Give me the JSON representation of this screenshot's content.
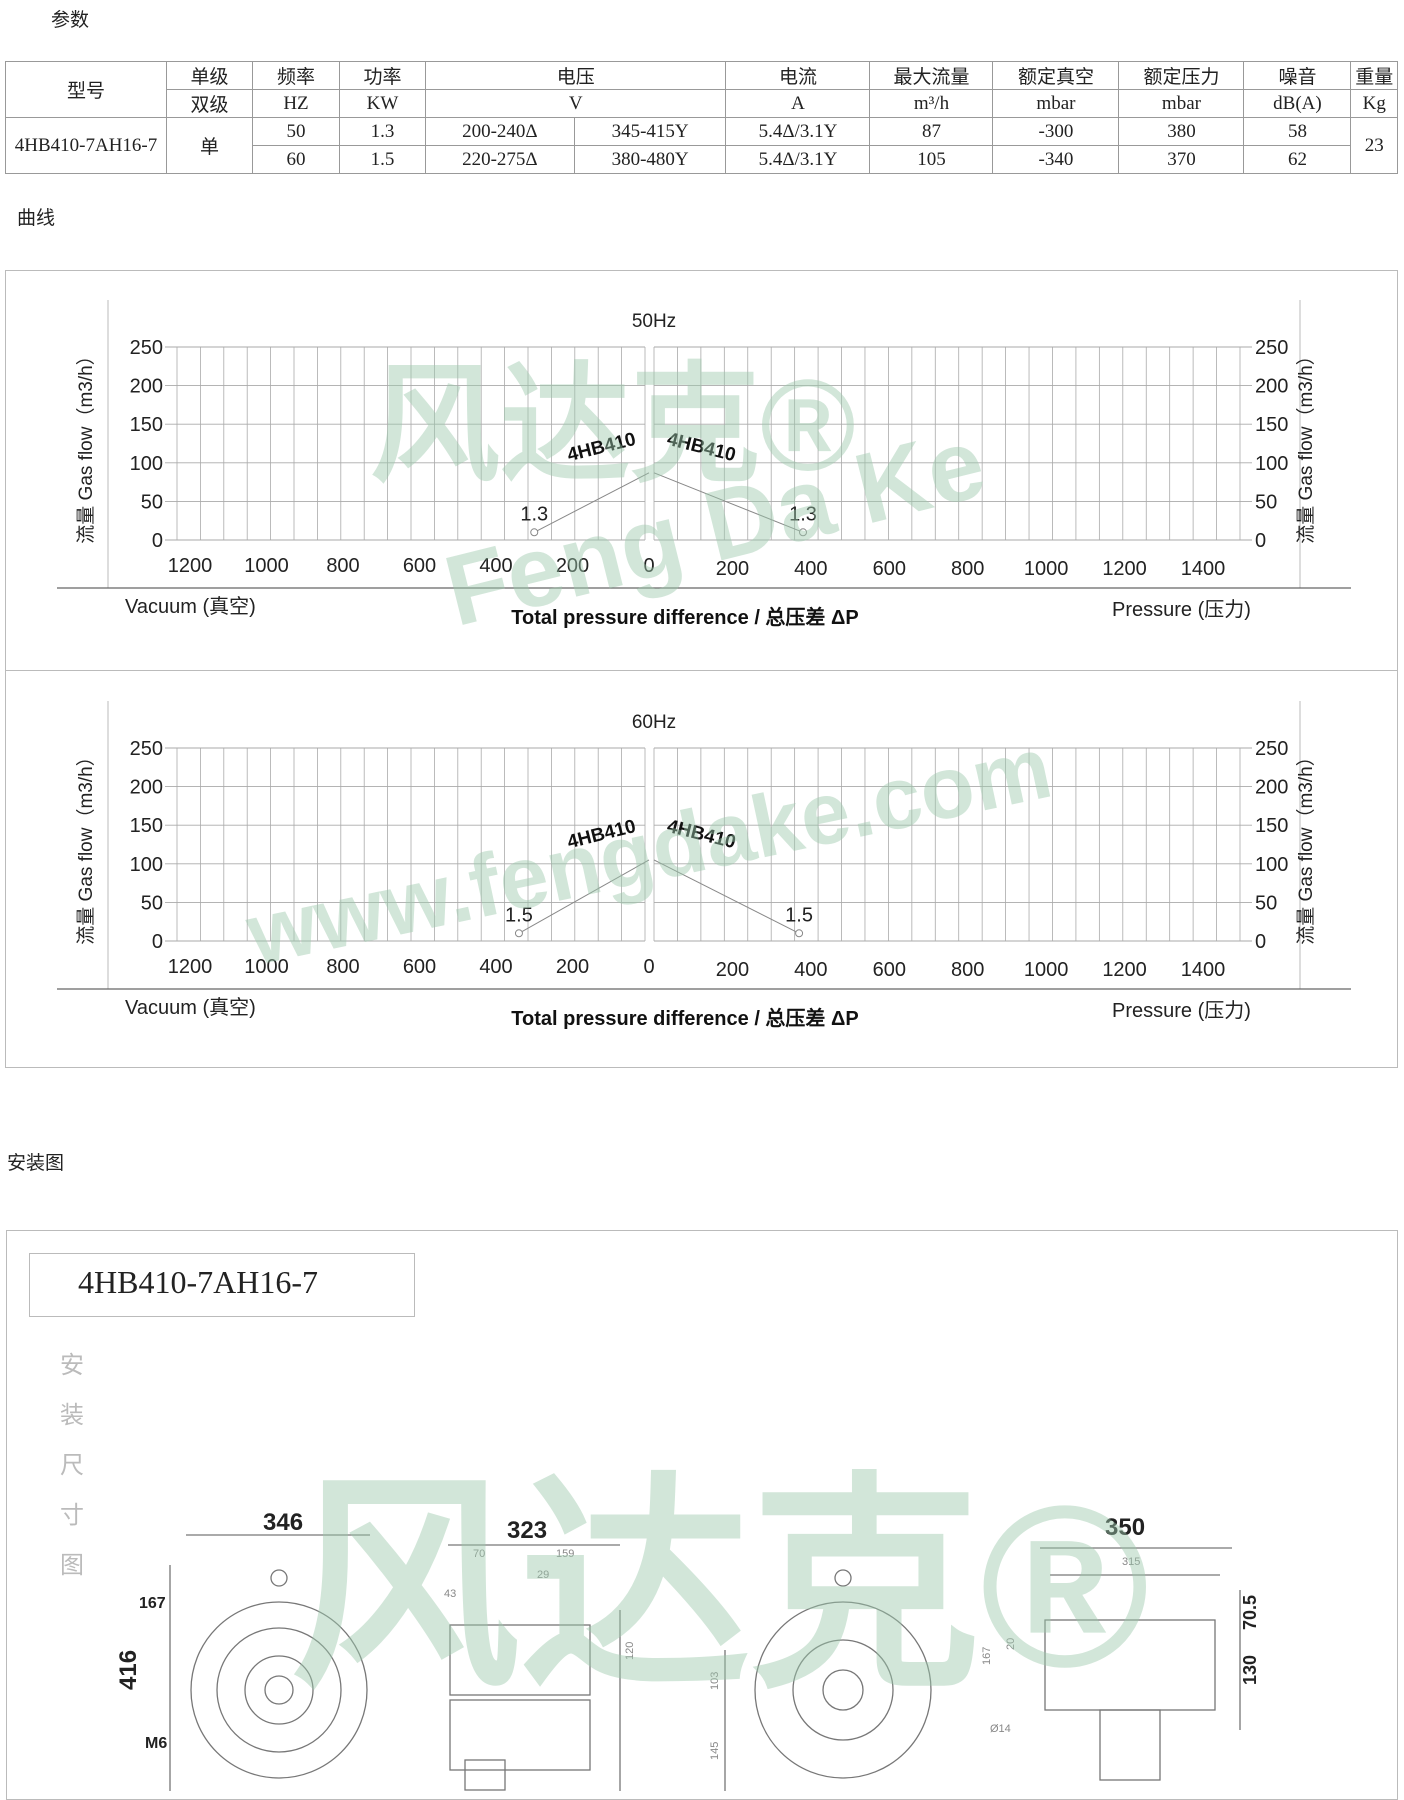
{
  "sections": {
    "params": "参数",
    "curves": "曲线",
    "install": "安装图"
  },
  "table": {
    "header1": [
      "型号",
      "单级",
      "频率",
      "功率",
      "电压",
      "电流",
      "最大流量",
      "额定真空",
      "额定压力",
      "噪音",
      "重量"
    ],
    "header2": [
      "双级",
      "HZ",
      "KW",
      "V",
      "A",
      "m³/h",
      "mbar",
      "mbar",
      "dB(A)",
      "Kg"
    ],
    "model": "4HB410-7AH16-7",
    "stage": "单",
    "weight": "23",
    "rows": [
      {
        "hz": "50",
        "kw": "1.3",
        "v_delta": "200-240Δ",
        "v_y": "345-415Y",
        "a": "5.4Δ/3.1Y",
        "flow": "87",
        "vacuum": "-300",
        "pressure": "380",
        "noise": "58"
      },
      {
        "hz": "60",
        "kw": "1.5",
        "v_delta": "220-275Δ",
        "v_y": "380-480Y",
        "a": "5.4Δ/3.1Y",
        "flow": "105",
        "vacuum": "-340",
        "pressure": "370",
        "noise": "62"
      }
    ]
  },
  "chart_data": [
    {
      "type": "line",
      "title": "50Hz",
      "ylabel": "流量 Gas flow（m3/h）",
      "xlabel": "Total pressure difference / 总压差  ΔP",
      "xlabel_left": "Vacuum (真空)",
      "xlabel_right": "Pressure (压力)",
      "yticks": [
        "0",
        "50",
        "100",
        "150",
        "200",
        "250"
      ],
      "xticks_left": [
        "1200",
        "1000",
        "800",
        "600",
        "400",
        "200",
        "0"
      ],
      "xticks_right": [
        "200",
        "400",
        "600",
        "800",
        "1000",
        "1200",
        "1400"
      ],
      "ylim": [
        0,
        250
      ],
      "xlim_vacuum": [
        0,
        1200
      ],
      "xlim_pressure": [
        0,
        1400
      ],
      "grid": true,
      "series": [
        {
          "name": "4HB410",
          "side": "vacuum",
          "point_label": "1.3",
          "x": [
            0,
            300
          ],
          "y": [
            87,
            10
          ]
        },
        {
          "name": "4HB410",
          "side": "pressure",
          "point_label": "1.3",
          "x": [
            0,
            380
          ],
          "y": [
            87,
            10
          ]
        }
      ]
    },
    {
      "type": "line",
      "title": "60Hz",
      "ylabel": "流量 Gas flow（m3/h）",
      "xlabel": "Total pressure difference / 总压差  ΔP",
      "xlabel_left": "Vacuum (真空)",
      "xlabel_right": "Pressure (压力)",
      "yticks": [
        "0",
        "50",
        "100",
        "150",
        "200",
        "250"
      ],
      "xticks_left": [
        "1200",
        "1000",
        "800",
        "600",
        "400",
        "200",
        "0"
      ],
      "xticks_right": [
        "200",
        "400",
        "600",
        "800",
        "1000",
        "1200",
        "1400"
      ],
      "ylim": [
        0,
        250
      ],
      "xlim_vacuum": [
        0,
        1200
      ],
      "xlim_pressure": [
        0,
        1400
      ],
      "grid": true,
      "series": [
        {
          "name": "4HB410",
          "side": "vacuum",
          "point_label": "1.5",
          "x": [
            0,
            340
          ],
          "y": [
            105,
            10
          ]
        },
        {
          "name": "4HB410",
          "side": "pressure",
          "point_label": "1.5",
          "x": [
            0,
            370
          ],
          "y": [
            105,
            10
          ]
        }
      ]
    }
  ],
  "drawing": {
    "title": "4HB410-7AH16-7",
    "side_caption": "安装尺寸图",
    "dims": {
      "width_front": "346",
      "height": "416",
      "d167": "167",
      "thread": "M6",
      "depth_side": "323",
      "d70": "70",
      "d159": "159",
      "d29": "29",
      "d43": "43",
      "d120": "120",
      "d103": "103",
      "d145": "145",
      "d167b": "167",
      "d20": "20",
      "width_right": "350",
      "d315": "315",
      "d70_5": "70.5",
      "d130": "130",
      "hole": "Ø14"
    }
  },
  "watermarks": {
    "brand_cn": "风达克®",
    "brand_pinyin": "Feng Da Ke",
    "url": "www.fengdake.com"
  },
  "colors": {
    "watermark": "#9cc9ac",
    "grid": "#aaaaaa",
    "line": "#888888"
  }
}
